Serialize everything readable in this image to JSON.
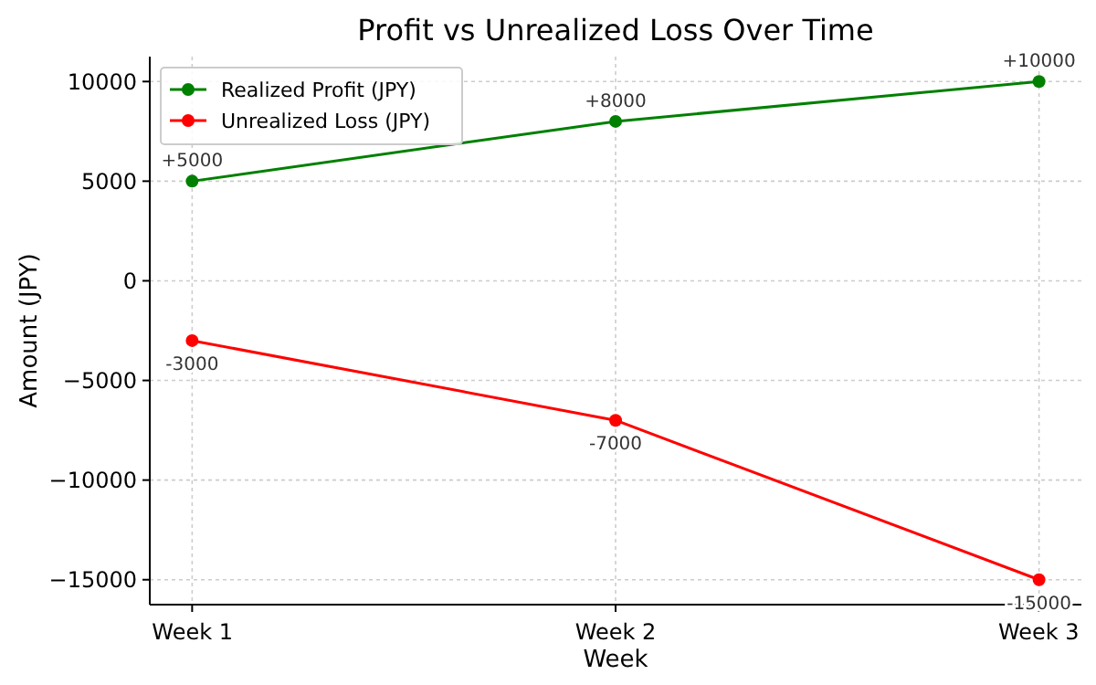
{
  "chart_data": {
    "type": "line",
    "title": "Profit vs Unrealized Loss Over Time",
    "xlabel": "Week",
    "ylabel": "Amount (JPY)",
    "categories": [
      "Week 1",
      "Week 2",
      "Week 3"
    ],
    "series": [
      {
        "name": "Realized Profit (JPY)",
        "color": "#008000",
        "values": [
          5000,
          8000,
          10000
        ],
        "value_labels": [
          "+5000",
          "+8000",
          "+10000"
        ]
      },
      {
        "name": "Unrealized Loss (JPY)",
        "color": "#ff0000",
        "values": [
          -3000,
          -7000,
          -15000
        ],
        "value_labels": [
          "-3000",
          "-7000",
          "-15000"
        ]
      }
    ],
    "ylim": [
      -16250,
      11250
    ],
    "yticks": [
      {
        "value": -15000,
        "label": "−15000"
      },
      {
        "value": -10000,
        "label": "−10000"
      },
      {
        "value": -5000,
        "label": "−5000"
      },
      0,
      5000,
      10000
    ],
    "grid": true,
    "legend": "top left",
    "marker": "circle",
    "line_style": "solid"
  }
}
